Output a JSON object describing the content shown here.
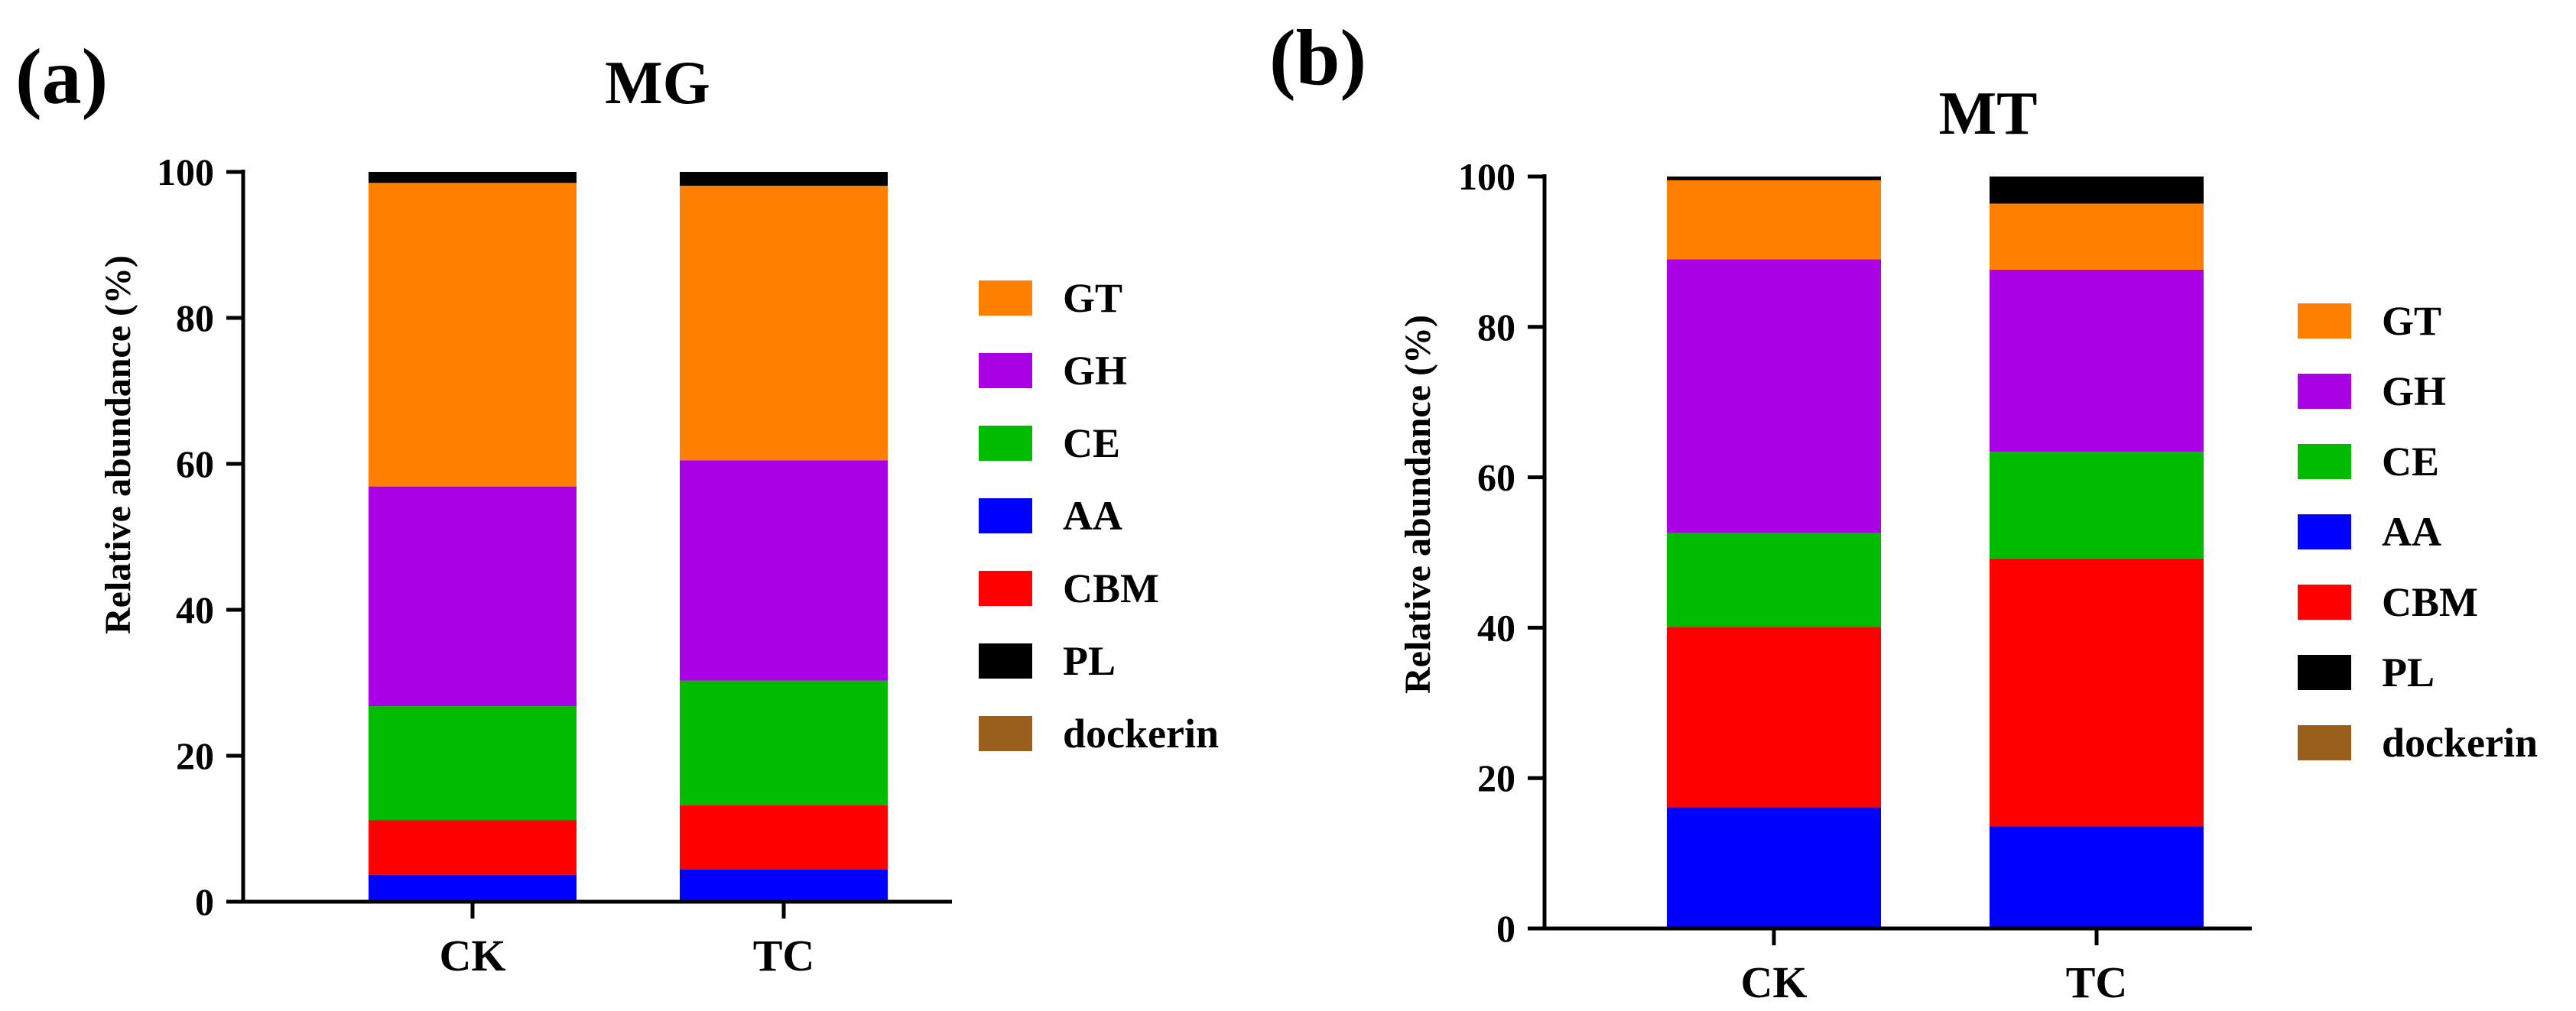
{
  "figure": {
    "panels": [
      "(a)",
      "(b)"
    ]
  },
  "chart_data": [
    {
      "type": "bar",
      "stacked": true,
      "panel_label": "(a)",
      "title": "MG",
      "xlabel": "",
      "ylabel": "Relative abundance (%)",
      "ylim": [
        0,
        100
      ],
      "yticks": [
        "0",
        "20",
        "40",
        "60",
        "80",
        "100"
      ],
      "categories": [
        "CK",
        "TC"
      ],
      "legend_position": "right",
      "series": [
        {
          "name": "dockerin",
          "color": "#9A5F1C",
          "values": [
            0.2,
            0.2
          ]
        },
        {
          "name": "AA",
          "color": "#0000FF",
          "values": [
            3.5,
            4.2
          ]
        },
        {
          "name": "CBM",
          "color": "#FF0000",
          "values": [
            7.5,
            8.8
          ]
        },
        {
          "name": "CE",
          "color": "#00BB00",
          "values": [
            15.6,
            17.1
          ]
        },
        {
          "name": "GH",
          "color": "#AA00E6",
          "values": [
            30.1,
            30.2
          ]
        },
        {
          "name": "GT",
          "color": "#FF8000",
          "values": [
            41.6,
            37.6
          ]
        },
        {
          "name": "PL",
          "color": "#000000",
          "values": [
            1.5,
            1.9
          ]
        }
      ],
      "legend_order": [
        "GT",
        "GH",
        "CE",
        "AA",
        "CBM",
        "PL",
        "dockerin"
      ]
    },
    {
      "type": "bar",
      "stacked": true,
      "panel_label": "(b)",
      "title": "MT",
      "xlabel": "",
      "ylabel": "Relative abundance (%)",
      "ylim": [
        0,
        100
      ],
      "yticks": [
        "0",
        "20",
        "40",
        "60",
        "80",
        "100"
      ],
      "categories": [
        "CK",
        "TC"
      ],
      "legend_position": "right",
      "series": [
        {
          "name": "dockerin",
          "color": "#9A5F1C",
          "values": [
            0.1,
            0.1
          ]
        },
        {
          "name": "AA",
          "color": "#0000FF",
          "values": [
            16.0,
            13.5
          ]
        },
        {
          "name": "CBM",
          "color": "#FF0000",
          "values": [
            24.0,
            35.6
          ]
        },
        {
          "name": "CE",
          "color": "#00BB00",
          "values": [
            12.5,
            14.2
          ]
        },
        {
          "name": "GH",
          "color": "#AA00E6",
          "values": [
            36.4,
            24.2
          ]
        },
        {
          "name": "GT",
          "color": "#FF8000",
          "values": [
            10.5,
            8.8
          ]
        },
        {
          "name": "PL",
          "color": "#000000",
          "values": [
            0.5,
            3.6
          ]
        }
      ],
      "legend_order": [
        "GT",
        "GH",
        "CE",
        "AA",
        "CBM",
        "PL",
        "dockerin"
      ]
    }
  ]
}
